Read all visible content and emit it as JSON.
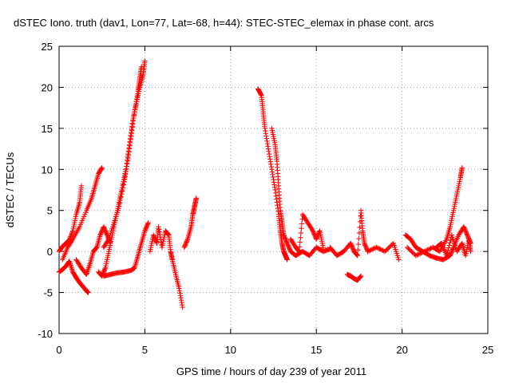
{
  "chart_data": {
    "type": "scatter",
    "title": "dSTEC Iono. truth (dav1, Lon=77, Lat=-68, h=44): STEC-STEC_elemax in phase cont. arcs",
    "xlabel": "GPS time / hours of day 239 of year 2011",
    "ylabel": "dSTEC  / TECUs",
    "xlim": [
      0,
      25
    ],
    "ylim": [
      -10,
      25
    ],
    "x_ticks": [
      0,
      5,
      10,
      15,
      20,
      25
    ],
    "y_ticks": [
      -10,
      -5,
      0,
      5,
      10,
      15,
      20,
      25
    ],
    "x_tick_labels": [
      "0",
      "5",
      "10",
      "15",
      "20",
      "25"
    ],
    "y_tick_labels": [
      "-10",
      "-5",
      "0",
      "5",
      "10",
      "15",
      "20",
      "25"
    ],
    "grid": true,
    "marker": "+",
    "color": "#ff0000",
    "series": [
      {
        "values": [
          [
            0.0,
            -2.5
          ],
          [
            0.2,
            -2.2
          ],
          [
            0.4,
            -1.8
          ],
          [
            0.6,
            -1.2
          ],
          [
            0.8,
            -2.5
          ],
          [
            1.0,
            -3.2
          ],
          [
            1.2,
            -3.8
          ],
          [
            1.4,
            -4.3
          ],
          [
            1.6,
            -4.8
          ],
          [
            1.7,
            -5.0
          ]
        ]
      },
      {
        "values": [
          [
            0.0,
            0.0
          ],
          [
            0.2,
            0.6
          ],
          [
            0.4,
            1.0
          ],
          [
            0.6,
            1.4
          ],
          [
            0.8,
            2.5
          ],
          [
            1.0,
            4.5
          ],
          [
            1.2,
            6.0
          ],
          [
            1.3,
            8.0
          ]
        ]
      },
      {
        "values": [
          [
            0.2,
            -1.0
          ],
          [
            0.5,
            0.5
          ],
          [
            0.8,
            1.5
          ],
          [
            1.2,
            3.0
          ],
          [
            1.6,
            5.0
          ],
          [
            1.9,
            6.5
          ],
          [
            2.1,
            8.0
          ],
          [
            2.3,
            9.5
          ],
          [
            2.5,
            10.2
          ]
        ]
      },
      {
        "values": [
          [
            1.0,
            -1.0
          ],
          [
            1.3,
            -2.0
          ],
          [
            1.6,
            -2.8
          ],
          [
            1.8,
            -1.5
          ],
          [
            2.0,
            0.0
          ],
          [
            2.2,
            0.5
          ],
          [
            2.4,
            2.0
          ],
          [
            2.6,
            3.0
          ],
          [
            2.8,
            2.0
          ],
          [
            3.0,
            1.0
          ]
        ]
      },
      {
        "values": [
          [
            2.3,
            -2.5
          ],
          [
            2.5,
            -3.0
          ],
          [
            2.7,
            -2.0
          ],
          [
            2.9,
            0.0
          ],
          [
            3.1,
            2.0
          ],
          [
            3.3,
            4.0
          ],
          [
            3.5,
            6.0
          ],
          [
            3.7,
            8.0
          ],
          [
            3.9,
            10.0
          ],
          [
            4.1,
            13.0
          ],
          [
            4.3,
            16.0
          ],
          [
            4.5,
            18.0
          ],
          [
            4.7,
            20.0
          ],
          [
            4.9,
            21.5
          ],
          [
            5.0,
            23.2
          ]
        ]
      },
      {
        "values": [
          [
            2.6,
            0.5
          ],
          [
            2.9,
            1.5
          ],
          [
            3.2,
            3.5
          ],
          [
            3.5,
            5.5
          ],
          [
            3.8,
            8.5
          ],
          [
            4.0,
            11.0
          ],
          [
            4.2,
            14.0
          ],
          [
            4.4,
            17.0
          ],
          [
            4.6,
            19.5
          ],
          [
            4.7,
            21.0
          ],
          [
            4.8,
            22.5
          ]
        ]
      },
      {
        "values": [
          [
            2.6,
            -3.0
          ],
          [
            3.0,
            -2.8
          ],
          [
            3.4,
            -2.6
          ],
          [
            3.8,
            -2.5
          ],
          [
            4.2,
            -2.3
          ],
          [
            4.4,
            -2.0
          ],
          [
            4.6,
            -0.5
          ],
          [
            4.8,
            1.0
          ],
          [
            5.0,
            2.5
          ],
          [
            5.2,
            3.5
          ]
        ]
      },
      {
        "values": [
          [
            5.3,
            0.0
          ],
          [
            5.5,
            2.0
          ],
          [
            5.7,
            1.0
          ],
          [
            5.8,
            3.0
          ],
          [
            6.0,
            0.5
          ],
          [
            6.2,
            2.5
          ],
          [
            6.4,
            2.0
          ],
          [
            6.5,
            0.0
          ],
          [
            6.6,
            -1.0
          ],
          [
            6.8,
            -2.8
          ],
          [
            7.0,
            -4.5
          ],
          [
            7.2,
            -6.8
          ]
        ]
      },
      {
        "values": [
          [
            7.3,
            0.5
          ],
          [
            7.5,
            1.5
          ],
          [
            7.7,
            3.0
          ],
          [
            7.8,
            4.5
          ],
          [
            7.9,
            5.5
          ],
          [
            8.0,
            6.5
          ]
        ]
      },
      {
        "values": [
          [
            11.6,
            19.8
          ],
          [
            11.8,
            19.0
          ],
          [
            11.9,
            17.0
          ],
          [
            12.0,
            15.0
          ],
          [
            12.2,
            12.5
          ],
          [
            12.4,
            10.0
          ],
          [
            12.6,
            7.5
          ],
          [
            12.8,
            4.5
          ],
          [
            12.9,
            2.5
          ],
          [
            13.0,
            1.0
          ],
          [
            13.1,
            0.0
          ],
          [
            13.2,
            -0.5
          ],
          [
            13.3,
            -1.0
          ]
        ]
      },
      {
        "values": [
          [
            12.4,
            15.0
          ],
          [
            12.6,
            13.0
          ],
          [
            12.7,
            11.0
          ],
          [
            12.8,
            8.0
          ],
          [
            12.9,
            5.0
          ],
          [
            13.0,
            3.5
          ],
          [
            13.1,
            2.0
          ],
          [
            13.3,
            1.0
          ],
          [
            13.5,
            0.0
          ],
          [
            13.8,
            -0.5
          ],
          [
            14.2,
            0.0
          ],
          [
            14.6,
            -0.5
          ],
          [
            15.0,
            0.5
          ],
          [
            15.4,
            0.0
          ],
          [
            15.8,
            0.3
          ]
        ]
      },
      {
        "values": [
          [
            13.5,
            1.5
          ],
          [
            13.8,
            0.5
          ],
          [
            14.0,
            0.0
          ],
          [
            14.2,
            4.5
          ],
          [
            14.5,
            3.5
          ],
          [
            14.8,
            2.5
          ],
          [
            15.0,
            1.5
          ],
          [
            15.2,
            2.5
          ],
          [
            15.4,
            0.5
          ]
        ]
      },
      {
        "values": [
          [
            15.8,
            0.5
          ],
          [
            16.2,
            -0.5
          ],
          [
            16.6,
            0.0
          ],
          [
            17.0,
            1.0
          ],
          [
            17.2,
            0.0
          ],
          [
            17.4,
            -0.5
          ],
          [
            17.6,
            5.0
          ],
          [
            17.7,
            2.5
          ],
          [
            17.8,
            1.0
          ],
          [
            18.0,
            0.0
          ],
          [
            18.5,
            0.5
          ],
          [
            19.0,
            0.0
          ],
          [
            19.5,
            1.0
          ],
          [
            19.8,
            -1.0
          ]
        ]
      },
      {
        "values": [
          [
            16.8,
            -2.8
          ],
          [
            17.0,
            -3.0
          ],
          [
            17.2,
            -3.3
          ],
          [
            17.4,
            -3.5
          ],
          [
            17.6,
            -3.0
          ]
        ]
      },
      {
        "values": [
          [
            20.2,
            2.0
          ],
          [
            20.5,
            1.5
          ],
          [
            20.8,
            0.5
          ],
          [
            21.2,
            0.0
          ],
          [
            21.6,
            -0.5
          ],
          [
            22.0,
            -0.8
          ],
          [
            22.4,
            -1.0
          ],
          [
            22.8,
            -0.5
          ],
          [
            23.0,
            0.5
          ],
          [
            23.3,
            2.0
          ],
          [
            23.6,
            3.0
          ],
          [
            23.8,
            2.0
          ],
          [
            24.0,
            1.0
          ]
        ]
      },
      {
        "values": [
          [
            20.3,
            0.5
          ],
          [
            20.8,
            -0.5
          ],
          [
            21.3,
            0.0
          ],
          [
            21.8,
            0.5
          ],
          [
            22.2,
            0.0
          ],
          [
            22.6,
            1.5
          ],
          [
            22.8,
            3.0
          ],
          [
            23.0,
            5.0
          ],
          [
            23.2,
            7.0
          ],
          [
            23.4,
            9.0
          ],
          [
            23.5,
            10.2
          ]
        ]
      },
      {
        "values": [
          [
            22.0,
            0.5
          ],
          [
            22.3,
            1.0
          ],
          [
            22.6,
            -0.5
          ],
          [
            22.9,
            2.0
          ],
          [
            23.2,
            0.0
          ],
          [
            23.5,
            1.0
          ],
          [
            23.7,
            -0.5
          ],
          [
            23.9,
            1.5
          ],
          [
            24.0,
            0.0
          ]
        ]
      }
    ]
  }
}
